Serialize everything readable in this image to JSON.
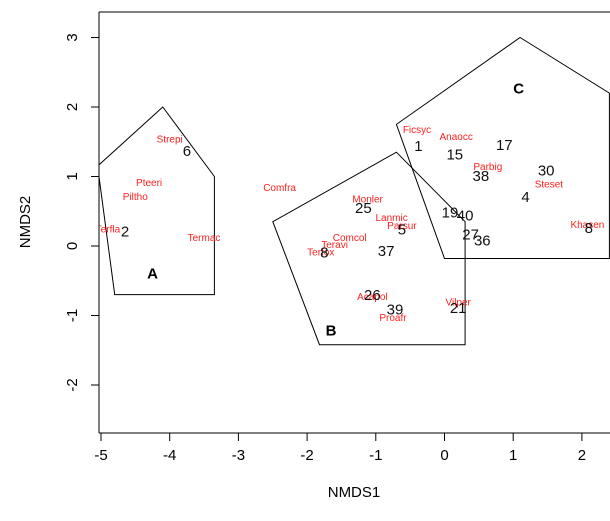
{
  "chart_data": {
    "type": "scatter",
    "title": "",
    "xlabel": "NMDS1",
    "ylabel": "NMDS2",
    "xlim": [
      -5.05,
      2.4
    ],
    "ylim": [
      -2.7,
      3.35
    ],
    "xticks": [
      -5,
      -4,
      -3,
      -2,
      -1,
      0,
      1,
      2
    ],
    "yticks": [
      -2,
      -1,
      0,
      1,
      2,
      3
    ],
    "xtick_labels": [
      "-5",
      "-4",
      "-3",
      "-2",
      "-1",
      "0",
      "1",
      "2"
    ],
    "ytick_labels": [
      "-2",
      "-1",
      "0",
      "1",
      "2",
      "3"
    ],
    "groups": [
      {
        "label": "A",
        "label_pos": [
          -4.25,
          -0.38
        ],
        "hull": [
          [
            -4.1,
            2.0
          ],
          [
            -3.35,
            1.0
          ],
          [
            -3.35,
            -0.7
          ],
          [
            -4.8,
            -0.7
          ],
          [
            -5.05,
            1.15
          ]
        ]
      },
      {
        "label": "B",
        "label_pos": [
          -1.65,
          -1.2
        ],
        "hull": [
          [
            -0.7,
            1.35
          ],
          [
            0.3,
            0.35
          ],
          [
            0.3,
            -1.42
          ],
          [
            -1.82,
            -1.42
          ],
          [
            -2.5,
            0.35
          ]
        ]
      },
      {
        "label": "C",
        "label_pos": [
          1.08,
          2.28
        ],
        "hull": [
          [
            1.1,
            3.0
          ],
          [
            2.4,
            2.2
          ],
          [
            2.4,
            -0.18
          ],
          [
            0.0,
            -0.18
          ],
          [
            -0.7,
            1.75
          ]
        ]
      }
    ],
    "sites": [
      {
        "label": "6",
        "x": -3.75,
        "y": 1.38
      },
      {
        "label": "2",
        "x": -4.65,
        "y": 0.22
      },
      {
        "label": "25",
        "x": -1.18,
        "y": 0.56
      },
      {
        "label": "5",
        "x": -0.62,
        "y": 0.25
      },
      {
        "label": "37",
        "x": -0.85,
        "y": -0.06
      },
      {
        "label": "8",
        "x": -1.75,
        "y": -0.08
      },
      {
        "label": "26",
        "x": -1.05,
        "y": -0.69
      },
      {
        "label": "39",
        "x": -0.72,
        "y": -0.9
      },
      {
        "label": "21",
        "x": 0.2,
        "y": -0.88
      },
      {
        "label": "1",
        "x": -0.38,
        "y": 1.45
      },
      {
        "label": "15",
        "x": 0.15,
        "y": 1.33
      },
      {
        "label": "17",
        "x": 0.87,
        "y": 1.47
      },
      {
        "label": "38",
        "x": 0.53,
        "y": 1.02
      },
      {
        "label": "30",
        "x": 1.48,
        "y": 1.1
      },
      {
        "label": "4",
        "x": 1.18,
        "y": 0.72
      },
      {
        "label": "19",
        "x": 0.08,
        "y": 0.5
      },
      {
        "label": "40",
        "x": 0.3,
        "y": 0.45
      },
      {
        "label": "27",
        "x": 0.38,
        "y": 0.18
      },
      {
        "label": "36",
        "x": 0.55,
        "y": 0.09
      },
      {
        "label": "8",
        "x": 2.1,
        "y": 0.27
      }
    ],
    "species": [
      {
        "label": "Strepi",
        "x": -4.0,
        "y": 1.55
      },
      {
        "label": "Pteeri",
        "x": -4.3,
        "y": 0.92
      },
      {
        "label": "Piltho",
        "x": -4.5,
        "y": 0.72
      },
      {
        "label": "Terfla",
        "x": -4.9,
        "y": 0.25
      },
      {
        "label": "Termac",
        "x": -3.5,
        "y": 0.13
      },
      {
        "label": "Comfra",
        "x": -2.4,
        "y": 0.85
      },
      {
        "label": "Monler",
        "x": -1.12,
        "y": 0.68
      },
      {
        "label": "Lanmic",
        "x": -0.77,
        "y": 0.42
      },
      {
        "label": "Parsur",
        "x": -0.62,
        "y": 0.3
      },
      {
        "label": "Comcol",
        "x": -1.38,
        "y": 0.13
      },
      {
        "label": "Teravi",
        "x": -1.6,
        "y": 0.03
      },
      {
        "label": "Terfox",
        "x": -1.8,
        "y": -0.08
      },
      {
        "label": "Acapol",
        "x": -1.05,
        "y": -0.72
      },
      {
        "label": "Proafr",
        "x": -0.75,
        "y": -1.02
      },
      {
        "label": "Vilper",
        "x": 0.2,
        "y": -0.8
      },
      {
        "label": "Ficsyc",
        "x": -0.4,
        "y": 1.68
      },
      {
        "label": "Anaocc",
        "x": 0.17,
        "y": 1.58
      },
      {
        "label": "Parbig",
        "x": 0.63,
        "y": 1.15
      },
      {
        "label": "Steset",
        "x": 1.52,
        "y": 0.9
      },
      {
        "label": "Khasen",
        "x": 2.08,
        "y": 0.32
      }
    ]
  }
}
